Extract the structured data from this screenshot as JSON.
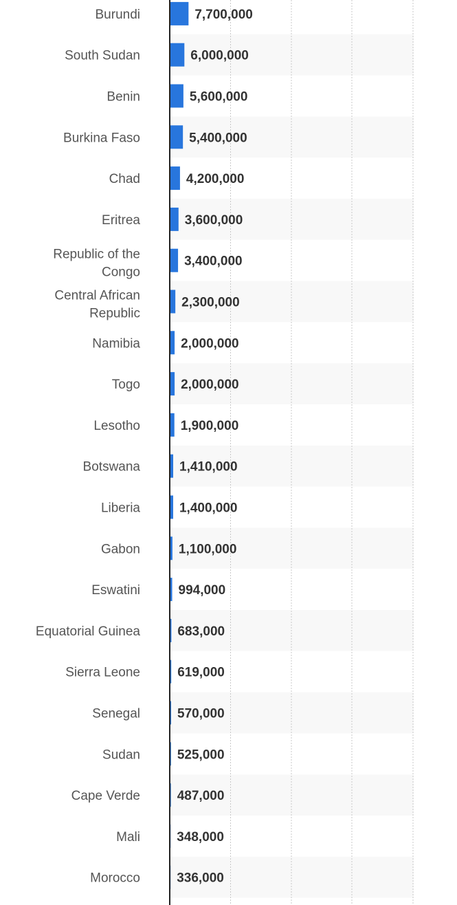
{
  "chart_data": {
    "type": "bar",
    "orientation": "horizontal",
    "categories": [
      "Burundi",
      "South Sudan",
      "Benin",
      "Burkina Faso",
      "Chad",
      "Eritrea",
      "Republic of the Congo",
      "Central African Republic",
      "Namibia",
      "Togo",
      "Lesotho",
      "Botswana",
      "Liberia",
      "Gabon",
      "Eswatini",
      "Equatorial Guinea",
      "Sierra Leone",
      "Senegal",
      "Sudan",
      "Cape Verde",
      "Mali",
      "Morocco"
    ],
    "category_lines": [
      [
        "Burundi"
      ],
      [
        "South Sudan"
      ],
      [
        "Benin"
      ],
      [
        "Burkina Faso"
      ],
      [
        "Chad"
      ],
      [
        "Eritrea"
      ],
      [
        "Republic of the",
        "Congo"
      ],
      [
        "Central African",
        "Republic"
      ],
      [
        "Namibia"
      ],
      [
        "Togo"
      ],
      [
        "Lesotho"
      ],
      [
        "Botswana"
      ],
      [
        "Liberia"
      ],
      [
        "Gabon"
      ],
      [
        "Eswatini"
      ],
      [
        "Equatorial Guinea"
      ],
      [
        "Sierra Leone"
      ],
      [
        "Senegal"
      ],
      [
        "Sudan"
      ],
      [
        "Cape Verde"
      ],
      [
        "Mali"
      ],
      [
        "Morocco"
      ]
    ],
    "values": [
      7700000,
      6000000,
      5600000,
      5400000,
      4200000,
      3600000,
      3400000,
      2300000,
      2000000,
      2000000,
      1900000,
      1410000,
      1400000,
      1100000,
      994000,
      683000,
      619000,
      570000,
      525000,
      487000,
      348000,
      336000
    ],
    "value_labels": [
      "7,700,000",
      "6,000,000",
      "5,600,000",
      "5,400,000",
      "4,200,000",
      "3,600,000",
      "3,400,000",
      "2,300,000",
      "2,000,000",
      "2,000,000",
      "1,900,000",
      "1,410,000",
      "1,400,000",
      "1,100,000",
      "994,000",
      "683,000",
      "619,000",
      "570,000",
      "525,000",
      "487,000",
      "348,000",
      "336,000"
    ],
    "title": "",
    "xlabel": "",
    "ylabel": "",
    "xlim": [
      0,
      100000000
    ],
    "grid": "vertical dotted",
    "legend": "none",
    "colors": {
      "bar": "#2876dd",
      "bar_edge": "#1f5fb8",
      "stripe": "#f8f8f8",
      "grid": "#c8c8c8",
      "axis": "#222222"
    }
  }
}
